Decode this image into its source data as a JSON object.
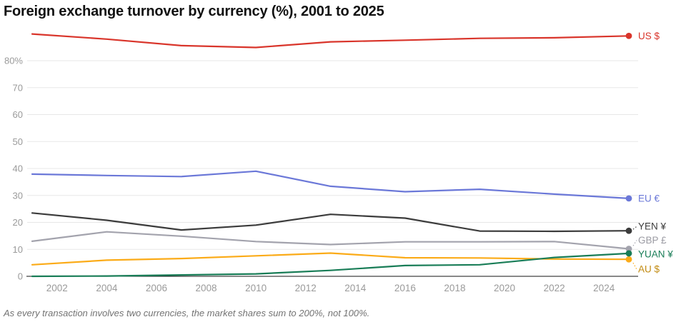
{
  "title": "Foreign exchange turnover by currency (%), 2001 to 2025",
  "footnote": "As every transaction involves two currencies, the market shares sum to 200%, not 100%.",
  "chart_data": {
    "type": "line",
    "title": "Foreign exchange turnover by currency (%), 2001 to 2025",
    "xlabel": "",
    "ylabel": "%",
    "grid": true,
    "legend_position": "right-end-labels",
    "x": [
      2001,
      2004,
      2007,
      2010,
      2013,
      2016,
      2019,
      2022,
      2025
    ],
    "x_range": [
      2001,
      2025
    ],
    "y_range": [
      0,
      80
    ],
    "y_ticks": [
      {
        "value": 0,
        "label": "0"
      },
      {
        "value": 10,
        "label": "10"
      },
      {
        "value": 20,
        "label": "20"
      },
      {
        "value": 30,
        "label": "30"
      },
      {
        "value": 40,
        "label": "40"
      },
      {
        "value": 50,
        "label": "50"
      },
      {
        "value": 60,
        "label": "60"
      },
      {
        "value": 70,
        "label": "70"
      },
      {
        "value": 80,
        "label": "80%"
      }
    ],
    "x_ticks": [
      {
        "value": 2002,
        "label": "2002"
      },
      {
        "value": 2004,
        "label": "2004"
      },
      {
        "value": 2006,
        "label": "2006"
      },
      {
        "value": 2008,
        "label": "2008"
      },
      {
        "value": 2010,
        "label": "2010"
      },
      {
        "value": 2012,
        "label": "2012"
      },
      {
        "value": 2014,
        "label": "2014"
      },
      {
        "value": 2016,
        "label": "2016"
      },
      {
        "value": 2018,
        "label": "2018"
      },
      {
        "value": 2020,
        "label": "2020"
      },
      {
        "value": 2022,
        "label": "2022"
      },
      {
        "value": 2024,
        "label": "2024"
      }
    ],
    "series": [
      {
        "name": "US $",
        "color": "#d9352b",
        "label_color": "#d9352b",
        "label_dy": 0,
        "values": [
          89.9,
          88.0,
          85.6,
          84.9,
          87.0,
          87.6,
          88.3,
          88.5,
          89.2
        ]
      },
      {
        "name": "EU €",
        "color": "#6b78d8",
        "label_color": "#6b78d8",
        "label_dy": 0,
        "values": [
          37.9,
          37.4,
          37.0,
          39.0,
          33.4,
          31.4,
          32.3,
          30.5,
          28.9
        ]
      },
      {
        "name": "YEN ¥",
        "color": "#3c3c3c",
        "label_color": "#3c3c3c",
        "label_dy": -6,
        "values": [
          23.5,
          20.8,
          17.2,
          19.0,
          23.0,
          21.6,
          16.8,
          16.7,
          16.9
        ]
      },
      {
        "name": "GBP £",
        "color": "#a3a3ad",
        "label_color": "#9b9ba3",
        "label_dy": -12,
        "values": [
          13.0,
          16.5,
          14.9,
          12.9,
          11.8,
          12.8,
          12.8,
          12.9,
          10.2
        ]
      },
      {
        "name": "AU $",
        "color": "#fbab18",
        "label_color": "#c18a10",
        "label_dy": 14,
        "values": [
          4.3,
          6.0,
          6.6,
          7.6,
          8.6,
          6.9,
          6.8,
          6.4,
          6.3
        ]
      },
      {
        "name": "YUAN ¥",
        "color": "#197d57",
        "label_color": "#197d57",
        "label_dy": 1,
        "values": [
          0.0,
          0.1,
          0.5,
          0.9,
          2.2,
          4.0,
          4.3,
          7.0,
          8.5
        ]
      }
    ]
  }
}
